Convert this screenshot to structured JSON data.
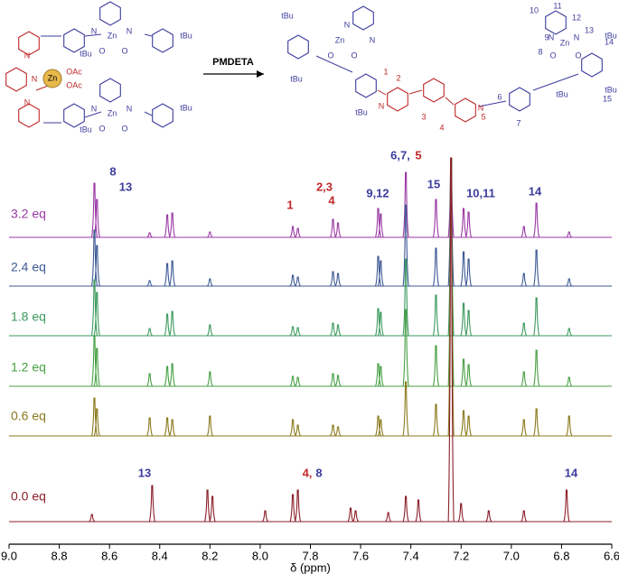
{
  "chart_data": {
    "type": "nmr-stack",
    "scheme": {
      "reagent": "PMDETA",
      "reactant_labels": [
        "Zn",
        "OAc",
        "OAc",
        "N",
        "N",
        "N",
        "Zn",
        "N",
        "N",
        "O",
        "O",
        "tBu",
        "tBu",
        "Zn",
        "N",
        "N",
        "O",
        "O",
        "tBu",
        "tBu"
      ],
      "product_labels": [
        "tBu",
        "tBu",
        "Zn",
        "N",
        "N",
        "O",
        "O",
        "tBu",
        "N",
        "N",
        "tBu",
        "Zn",
        "N",
        "N",
        "O",
        "O",
        "tBu",
        "tBu"
      ],
      "numbers": [
        "1",
        "2",
        "3",
        "4",
        "5",
        "6",
        "7",
        "8",
        "9",
        "10",
        "11",
        "12",
        "13",
        "14",
        "15"
      ]
    },
    "xlabel": "δ (ppm)",
    "xlim": [
      9.0,
      6.6
    ],
    "xticks": [
      {
        "value": 9.0,
        "label": "9.0"
      },
      8.8,
      8.6,
      8.4,
      8.2,
      {
        "value": 8.0,
        "label": "8.0"
      },
      7.8,
      7.6,
      7.4,
      7.2,
      {
        "value": 7.0,
        "label": "7.0"
      },
      6.8,
      6.6
    ],
    "series": [
      {
        "name": "3.2 eq",
        "color": "#9a3aa5",
        "x": [
          8.66,
          8.65,
          8.44,
          8.37,
          8.35,
          8.2,
          7.87,
          7.85,
          7.71,
          7.69,
          7.53,
          7.52,
          7.42,
          7.3,
          7.24,
          7.19,
          7.17,
          6.95,
          6.9,
          6.77
        ],
        "values": [
          60,
          42,
          5,
          25,
          27,
          6,
          12,
          10,
          20,
          16,
          32,
          26,
          72,
          42,
          88,
          32,
          28,
          12,
          38,
          6
        ]
      },
      {
        "name": "2.4 eq",
        "color": "#3e5a94",
        "x": [
          8.66,
          8.65,
          8.44,
          8.37,
          8.35,
          8.2,
          7.87,
          7.85,
          7.71,
          7.69,
          7.53,
          7.52,
          7.42,
          7.3,
          7.24,
          7.19,
          7.17,
          6.95,
          6.9,
          6.77
        ],
        "values": [
          62,
          45,
          6,
          25,
          28,
          8,
          12,
          10,
          16,
          14,
          33,
          28,
          90,
          42,
          142,
          38,
          30,
          14,
          40,
          8
        ]
      },
      {
        "name": "1.8 eq",
        "color": "#3c9a5e",
        "x": [
          8.66,
          8.65,
          8.44,
          8.37,
          8.35,
          8.2,
          7.87,
          7.85,
          7.71,
          7.69,
          7.53,
          7.52,
          7.42,
          7.3,
          7.24,
          7.19,
          7.17,
          6.95,
          6.9,
          6.77
        ],
        "values": [
          62,
          48,
          8,
          24,
          27,
          12,
          10,
          9,
          14,
          12,
          30,
          26,
          85,
          45,
          197,
          36,
          28,
          14,
          42,
          8
        ]
      },
      {
        "name": "1.2 eq",
        "color": "#47a043",
        "x": [
          8.66,
          8.65,
          8.44,
          8.37,
          8.35,
          8.2,
          7.87,
          7.85,
          7.71,
          7.69,
          7.53,
          7.52,
          7.42,
          7.3,
          7.24,
          7.19,
          7.17,
          6.95,
          6.9,
          6.77
        ],
        "values": [
          55,
          42,
          14,
          22,
          25,
          16,
          11,
          10,
          14,
          12,
          25,
          22,
          85,
          45,
          253,
          30,
          24,
          16,
          40,
          10
        ]
      },
      {
        "name": "0.6 eq",
        "color": "#8a7a1e",
        "x": [
          8.66,
          8.65,
          8.44,
          8.37,
          8.35,
          8.2,
          7.87,
          7.85,
          7.71,
          7.69,
          7.53,
          7.52,
          7.42,
          7.3,
          7.24,
          7.19,
          7.17,
          6.95,
          6.9,
          6.77
        ],
        "values": [
          42,
          30,
          20,
          20,
          18,
          22,
          18,
          12,
          12,
          10,
          22,
          18,
          60,
          35,
          308,
          28,
          22,
          18,
          30,
          22
        ]
      },
      {
        "name": "0.0 eq",
        "color": "#8b1f2a",
        "x": [
          8.67,
          8.43,
          8.21,
          8.19,
          7.98,
          7.87,
          7.85,
          7.64,
          7.62,
          7.49,
          7.42,
          7.37,
          7.24,
          7.2,
          7.09,
          6.95,
          6.78
        ],
        "values": [
          8,
          40,
          35,
          28,
          12,
          30,
          35,
          15,
          12,
          10,
          28,
          24,
          403,
          20,
          12,
          12,
          35
        ]
      }
    ],
    "annotations": [
      {
        "text": "8",
        "color": "#3d3d9e"
      },
      {
        "text": "13",
        "color": "#3d3d9e"
      },
      {
        "text": "2,3",
        "color": "#c0282a"
      },
      {
        "text": "1",
        "color": "#c0282a"
      },
      {
        "text": "4",
        "color": "#c0282a"
      },
      {
        "text": "9,12",
        "color": "#3d3d9e"
      },
      {
        "text": "6,7,",
        "color": "#3d3d9e"
      },
      {
        "text": "5",
        "color": "#c0282a"
      },
      {
        "text": "15",
        "color": "#3d3d9e"
      },
      {
        "text": "10,11",
        "color": "#3d3d9e"
      },
      {
        "text": "14",
        "color": "#3d3d9e"
      },
      {
        "text": "13",
        "color": "#3d3d9e"
      },
      {
        "text": "4,",
        "color": "#c0282a"
      },
      {
        "text": "8",
        "color": "#3d3d9e"
      },
      {
        "text": "14",
        "color": "#3d3d9e"
      }
    ]
  }
}
